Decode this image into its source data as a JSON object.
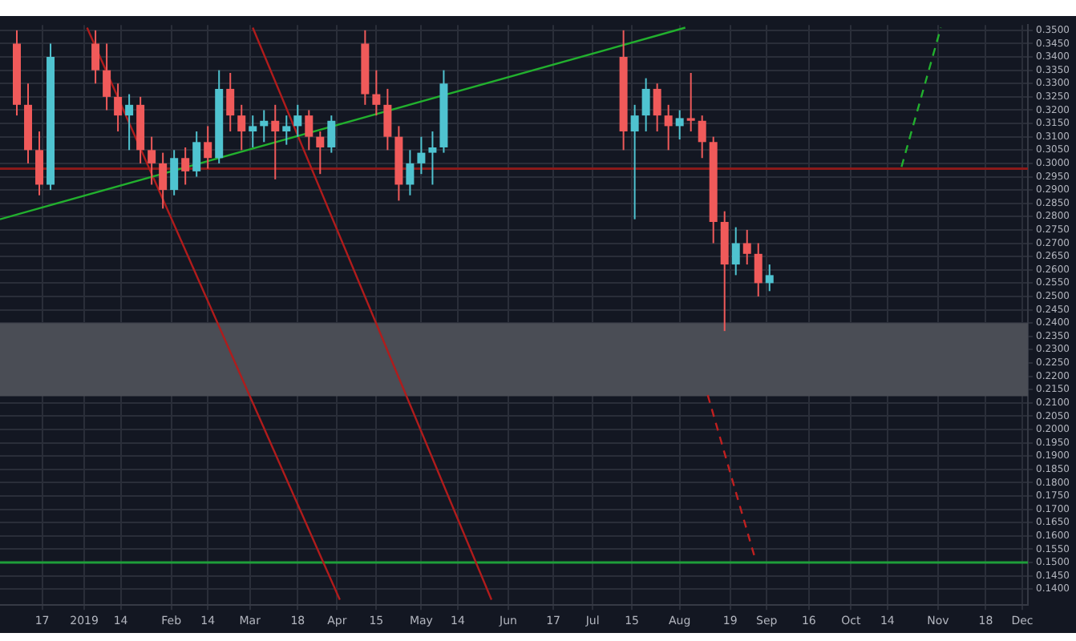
{
  "chart_data": {
    "type": "candlestick",
    "x": [
      "2018-12-08",
      "2018-12-12",
      "2018-12-16",
      "2018-12-20",
      "2019-01-05",
      "2019-01-09",
      "2019-01-13",
      "2019-01-17",
      "2019-01-21",
      "2019-01-25",
      "2019-01-29",
      "2019-02-02",
      "2019-02-06",
      "2019-02-10",
      "2019-02-14",
      "2019-02-18",
      "2019-02-22",
      "2019-02-26",
      "2019-03-02",
      "2019-03-06",
      "2019-03-10",
      "2019-03-14",
      "2019-03-18",
      "2019-03-22",
      "2019-03-26",
      "2019-03-30",
      "2019-04-11",
      "2019-04-15",
      "2019-04-19",
      "2019-04-23",
      "2019-04-27",
      "2019-05-01",
      "2019-05-05",
      "2019-05-09",
      "2019-07-12",
      "2019-07-16",
      "2019-07-20",
      "2019-07-24",
      "2019-07-28",
      "2019-08-01",
      "2019-08-05",
      "2019-08-09",
      "2019-08-13",
      "2019-08-17",
      "2019-08-21",
      "2019-08-25",
      "2019-08-29",
      "2019-09-02"
    ],
    "ohlc": [
      [
        0.345,
        0.35,
        0.318,
        0.322
      ],
      [
        0.322,
        0.33,
        0.3,
        0.305
      ],
      [
        0.305,
        0.312,
        0.288,
        0.292
      ],
      [
        0.292,
        0.345,
        0.29,
        0.34
      ],
      [
        0.345,
        0.35,
        0.33,
        0.335
      ],
      [
        0.335,
        0.345,
        0.32,
        0.325
      ],
      [
        0.325,
        0.33,
        0.312,
        0.318
      ],
      [
        0.318,
        0.326,
        0.305,
        0.322
      ],
      [
        0.322,
        0.325,
        0.3,
        0.305
      ],
      [
        0.305,
        0.31,
        0.292,
        0.3
      ],
      [
        0.3,
        0.304,
        0.283,
        0.29
      ],
      [
        0.29,
        0.305,
        0.288,
        0.302
      ],
      [
        0.302,
        0.306,
        0.292,
        0.297
      ],
      [
        0.297,
        0.312,
        0.295,
        0.308
      ],
      [
        0.308,
        0.314,
        0.298,
        0.302
      ],
      [
        0.302,
        0.335,
        0.3,
        0.328
      ],
      [
        0.328,
        0.334,
        0.312,
        0.318
      ],
      [
        0.318,
        0.322,
        0.305,
        0.312
      ],
      [
        0.312,
        0.318,
        0.306,
        0.314
      ],
      [
        0.314,
        0.32,
        0.308,
        0.316
      ],
      [
        0.316,
        0.322,
        0.294,
        0.312
      ],
      [
        0.312,
        0.318,
        0.307,
        0.314
      ],
      [
        0.314,
        0.322,
        0.31,
        0.318
      ],
      [
        0.318,
        0.32,
        0.305,
        0.31
      ],
      [
        0.31,
        0.312,
        0.296,
        0.306
      ],
      [
        0.306,
        0.318,
        0.304,
        0.316
      ],
      [
        0.345,
        0.35,
        0.322,
        0.326
      ],
      [
        0.326,
        0.335,
        0.318,
        0.322
      ],
      [
        0.322,
        0.328,
        0.305,
        0.31
      ],
      [
        0.31,
        0.314,
        0.286,
        0.292
      ],
      [
        0.292,
        0.305,
        0.288,
        0.3
      ],
      [
        0.3,
        0.31,
        0.296,
        0.304
      ],
      [
        0.304,
        0.312,
        0.292,
        0.306
      ],
      [
        0.306,
        0.335,
        0.304,
        0.33
      ],
      [
        0.34,
        0.35,
        0.305,
        0.312
      ],
      [
        0.312,
        0.322,
        0.279,
        0.318
      ],
      [
        0.318,
        0.332,
        0.312,
        0.328
      ],
      [
        0.328,
        0.33,
        0.312,
        0.318
      ],
      [
        0.318,
        0.322,
        0.305,
        0.314
      ],
      [
        0.314,
        0.32,
        0.309,
        0.317
      ],
      [
        0.317,
        0.334,
        0.312,
        0.316
      ],
      [
        0.316,
        0.318,
        0.302,
        0.308
      ],
      [
        0.308,
        0.31,
        0.27,
        0.278
      ],
      [
        0.278,
        0.282,
        0.237,
        0.262
      ],
      [
        0.262,
        0.276,
        0.258,
        0.27
      ],
      [
        0.27,
        0.275,
        0.262,
        0.266
      ],
      [
        0.266,
        0.27,
        0.25,
        0.255
      ],
      [
        0.255,
        0.262,
        0.252,
        0.258
      ]
    ],
    "colors": [
      "#f05a5a",
      "#f05a5a",
      "#f05a5a",
      "#4fc3d0",
      "#f05a5a",
      "#f05a5a",
      "#f05a5a",
      "#4fc3d0",
      "#f05a5a",
      "#f05a5a",
      "#f05a5a",
      "#4fc3d0",
      "#f05a5a",
      "#4fc3d0",
      "#f05a5a",
      "#4fc3d0",
      "#f05a5a",
      "#f05a5a",
      "#4fc3d0",
      "#4fc3d0",
      "#f05a5a",
      "#4fc3d0",
      "#4fc3d0",
      "#f05a5a",
      "#f05a5a",
      "#4fc3d0",
      "#f05a5a",
      "#f05a5a",
      "#f05a5a",
      "#f05a5a",
      "#4fc3d0",
      "#4fc3d0",
      "#4fc3d0",
      "#4fc3d0",
      "#f05a5a",
      "#4fc3d0",
      "#4fc3d0",
      "#f05a5a",
      "#f05a5a",
      "#4fc3d0",
      "#f05a5a",
      "#f05a5a",
      "#f05a5a",
      "#f05a5a",
      "#4fc3d0",
      "#f05a5a",
      "#f05a5a",
      "#4fc3d0"
    ],
    "series": [
      {
        "type": "line",
        "x": [
          "2018-12-02",
          "2019-08-03"
        ],
        "values": [
          0.279,
          0.351
        ],
        "color": "#22b02e",
        "line_style": "solid"
      },
      {
        "type": "line",
        "x": [
          "2019-01-02",
          "2019-04-02"
        ],
        "values": [
          0.351,
          0.136
        ],
        "color": "#b01c1c",
        "line_style": "solid"
      },
      {
        "type": "line",
        "x": [
          "2019-03-02",
          "2019-05-26"
        ],
        "values": [
          0.351,
          0.136
        ],
        "color": "#b01c1c",
        "line_style": "solid"
      },
      {
        "type": "line",
        "x": [
          "2019-08-11",
          "2019-08-28"
        ],
        "values": [
          0.2129,
          0.151
        ],
        "color": "#c02020",
        "line_style": "dashed"
      },
      {
        "type": "line",
        "x": [
          "2019-10-19",
          "2019-11-02"
        ],
        "values": [
          0.2987,
          0.351
        ],
        "color": "#22b02e",
        "line_style": "dashed"
      }
    ],
    "ref_lines": [
      {
        "axis": "y",
        "value": 0.298,
        "color": "#8b1a1a"
      },
      {
        "axis": "y",
        "value": 0.15,
        "color": "#1e9e3a"
      }
    ],
    "bands": [
      {
        "axis": "y",
        "from": 0.2125,
        "to": 0.24,
        "color": "#4a4d55"
      }
    ],
    "xlim": [
      "2018-12-02",
      "2019-12-03"
    ],
    "xticks": [
      {
        "value": "2018-12-17",
        "label": "17"
      },
      {
        "value": "2019-01-01",
        "label": "2019"
      },
      {
        "value": "2019-01-14",
        "label": "14"
      },
      {
        "value": "2019-02-01",
        "label": "Feb"
      },
      {
        "value": "2019-02-14",
        "label": "14"
      },
      {
        "value": "2019-03-01",
        "label": "Mar"
      },
      {
        "value": "2019-03-18",
        "label": "18"
      },
      {
        "value": "2019-04-01",
        "label": "Apr"
      },
      {
        "value": "2019-04-15",
        "label": "15"
      },
      {
        "value": "2019-05-01",
        "label": "May"
      },
      {
        "value": "2019-05-14",
        "label": "14"
      },
      {
        "value": "2019-06-01",
        "label": "Jun"
      },
      {
        "value": "2019-06-17",
        "label": "17"
      },
      {
        "value": "2019-07-01",
        "label": "Jul"
      },
      {
        "value": "2019-07-15",
        "label": "15"
      },
      {
        "value": "2019-08-01",
        "label": "Aug"
      },
      {
        "value": "2019-08-19",
        "label": "19"
      },
      {
        "value": "2019-09-01",
        "label": "Sep"
      },
      {
        "value": "2019-09-16",
        "label": "16"
      },
      {
        "value": "2019-10-01",
        "label": "Oct"
      },
      {
        "value": "2019-10-14",
        "label": "14"
      },
      {
        "value": "2019-11-01",
        "label": "Nov"
      },
      {
        "value": "2019-11-18",
        "label": "18"
      },
      {
        "value": "2019-12-01",
        "label": "Dec"
      }
    ],
    "ylim": [
      0.134,
      0.352
    ],
    "yticks": [
      {
        "value": 0.14,
        "label": "0.1400"
      },
      {
        "value": 0.145,
        "label": "0.1450"
      },
      {
        "value": 0.15,
        "label": "0.1500"
      },
      {
        "value": 0.155,
        "label": "0.1550"
      },
      {
        "value": 0.16,
        "label": "0.1600"
      },
      {
        "value": 0.165,
        "label": "0.1650"
      },
      {
        "value": 0.17,
        "label": "0.1700"
      },
      {
        "value": 0.175,
        "label": "0.1750"
      },
      {
        "value": 0.18,
        "label": "0.1800"
      },
      {
        "value": 0.185,
        "label": "0.1850"
      },
      {
        "value": 0.19,
        "label": "0.1900"
      },
      {
        "value": 0.195,
        "label": "0.1950"
      },
      {
        "value": 0.2,
        "label": "0.2000"
      },
      {
        "value": 0.205,
        "label": "0.2050"
      },
      {
        "value": 0.21,
        "label": "0.2100"
      },
      {
        "value": 0.215,
        "label": "0.2150"
      },
      {
        "value": 0.22,
        "label": "0.2200"
      },
      {
        "value": 0.225,
        "label": "0.2250"
      },
      {
        "value": 0.23,
        "label": "0.2300"
      },
      {
        "value": 0.235,
        "label": "0.2350"
      },
      {
        "value": 0.24,
        "label": "0.2400"
      },
      {
        "value": 0.245,
        "label": "0.2450"
      },
      {
        "value": 0.25,
        "label": "0.2500"
      },
      {
        "value": 0.255,
        "label": "0.2550"
      },
      {
        "value": 0.26,
        "label": "0.2600"
      },
      {
        "value": 0.265,
        "label": "0.2650"
      },
      {
        "value": 0.27,
        "label": "0.2700"
      },
      {
        "value": 0.275,
        "label": "0.2750"
      },
      {
        "value": 0.28,
        "label": "0.2800"
      },
      {
        "value": 0.285,
        "label": "0.2850"
      },
      {
        "value": 0.29,
        "label": "0.2900"
      },
      {
        "value": 0.295,
        "label": "0.2950"
      },
      {
        "value": 0.3,
        "label": "0.3000"
      },
      {
        "value": 0.305,
        "label": "0.3050"
      },
      {
        "value": 0.31,
        "label": "0.3100"
      },
      {
        "value": 0.315,
        "label": "0.3150"
      },
      {
        "value": 0.32,
        "label": "0.3200"
      },
      {
        "value": 0.325,
        "label": "0.3250"
      },
      {
        "value": 0.33,
        "label": "0.3300"
      },
      {
        "value": 0.335,
        "label": "0.3350"
      },
      {
        "value": 0.34,
        "label": "0.3400"
      },
      {
        "value": 0.345,
        "label": "0.3450"
      },
      {
        "value": 0.35,
        "label": "0.3500"
      }
    ],
    "grid": true
  }
}
